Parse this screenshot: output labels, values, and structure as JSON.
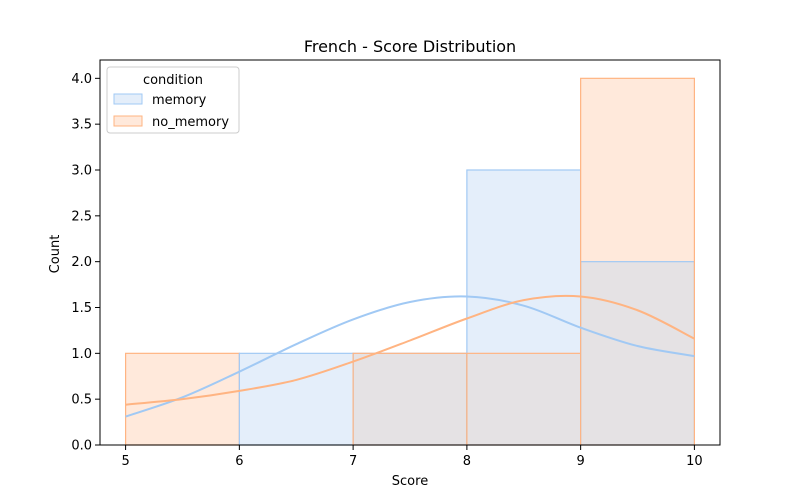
{
  "chart_data": {
    "type": "bar",
    "title": "French - Score Distribution",
    "xlabel": "Score",
    "ylabel": "Count",
    "xlim": [
      4.775,
      10.225
    ],
    "ylim": [
      0,
      4.2
    ],
    "xticks": [
      "5",
      "6",
      "7",
      "8",
      "9",
      "10"
    ],
    "yticks": [
      "0.0",
      "0.5",
      "1.0",
      "1.5",
      "2.0",
      "2.5",
      "3.0",
      "3.5",
      "4.0"
    ],
    "bins": [
      [
        5,
        6
      ],
      [
        6,
        7
      ],
      [
        7,
        8
      ],
      [
        8,
        9
      ],
      [
        9,
        10
      ]
    ],
    "legend": {
      "title": "condition",
      "placement": "top-left"
    },
    "grid": false,
    "series": [
      {
        "name": "memory",
        "values": [
          0,
          1,
          1,
          3,
          2
        ],
        "fill": "#e4eefa",
        "stroke": "#a1c9f4",
        "kde": {
          "x": [
            5,
            5.5,
            6,
            6.5,
            7,
            7.5,
            8,
            8.5,
            9,
            9.5,
            10
          ],
          "y": [
            0.31,
            0.52,
            0.8,
            1.1,
            1.37,
            1.56,
            1.62,
            1.52,
            1.28,
            1.08,
            0.97
          ]
        }
      },
      {
        "name": "no_memory",
        "values": [
          1,
          0,
          1,
          1,
          4
        ],
        "fill": "#ffe9db",
        "stroke": "#ffb482",
        "kde": {
          "x": [
            5,
            5.5,
            6,
            6.5,
            7,
            7.5,
            8,
            8.5,
            9,
            9.5,
            10
          ],
          "y": [
            0.44,
            0.5,
            0.59,
            0.71,
            0.91,
            1.14,
            1.38,
            1.58,
            1.62,
            1.47,
            1.16
          ]
        }
      }
    ],
    "overlap_fill": "#e5e2e4"
  }
}
